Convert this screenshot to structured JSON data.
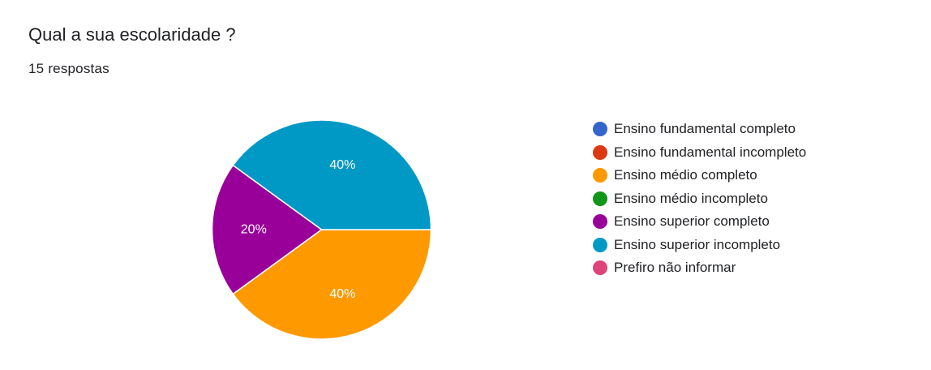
{
  "question": {
    "title": "Qual a sua escolaridade ?",
    "response_count": "15",
    "response_label": "respostas"
  },
  "chart_data": {
    "type": "pie",
    "title": "Qual a sua escolaridade ?",
    "total_responses": 15,
    "start_angle_deg": 0,
    "direction": "clockwise",
    "legend_position": "right",
    "slices": [
      {
        "label": "Ensino fundamental completo",
        "value": 0,
        "percent_label": "",
        "color": "#3366cc"
      },
      {
        "label": "Ensino fundamental incompleto",
        "value": 0,
        "percent_label": "",
        "color": "#dc3912"
      },
      {
        "label": "Ensino médio completo",
        "value": 40,
        "percent_label": "40%",
        "color": "#ff9900"
      },
      {
        "label": "Ensino médio incompleto",
        "value": 0,
        "percent_label": "",
        "color": "#109618"
      },
      {
        "label": "Ensino superior completo",
        "value": 20,
        "percent_label": "20%",
        "color": "#990099"
      },
      {
        "label": "Ensino superior incompleto",
        "value": 40,
        "percent_label": "40%",
        "color": "#0099c6"
      },
      {
        "label": "Prefiro não informar",
        "value": 0,
        "percent_label": "",
        "color": "#dd4477"
      }
    ]
  }
}
